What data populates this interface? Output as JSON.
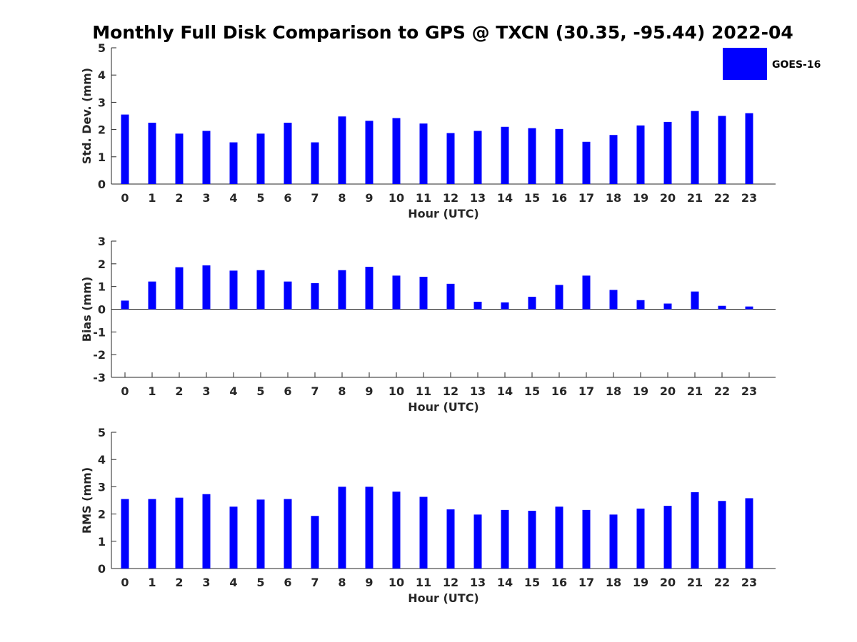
{
  "title": "Monthly Full Disk Comparison to GPS @ TXCN (30.35, -95.44) 2022-04",
  "legend": {
    "label": "GOES-16",
    "color": "#0000ff"
  },
  "chart_data": [
    {
      "type": "bar",
      "title": "Monthly Full Disk Comparison to GPS @ TXCN (30.35, -95.44) 2022-04",
      "xlabel": "Hour (UTC)",
      "ylabel": "Std. Dev. (mm)",
      "ylim": [
        0,
        5
      ],
      "yticks": [
        0,
        1,
        2,
        3,
        4,
        5
      ],
      "categories": [
        "0",
        "1",
        "2",
        "3",
        "4",
        "5",
        "6",
        "7",
        "8",
        "9",
        "10",
        "11",
        "12",
        "13",
        "14",
        "15",
        "16",
        "17",
        "18",
        "19",
        "20",
        "21",
        "22",
        "23"
      ],
      "series": [
        {
          "name": "GOES-16",
          "color": "#0000ff",
          "values": [
            2.55,
            2.25,
            1.85,
            1.95,
            1.53,
            1.85,
            2.25,
            1.53,
            2.48,
            2.32,
            2.42,
            2.22,
            1.87,
            1.95,
            2.1,
            2.05,
            2.02,
            1.55,
            1.8,
            2.15,
            2.28,
            2.68,
            2.5,
            2.6
          ]
        }
      ],
      "legend": "top-right"
    },
    {
      "type": "bar",
      "xlabel": "Hour (UTC)",
      "ylabel": "Bias (mm)",
      "ylim": [
        -3,
        3
      ],
      "yticks": [
        -3,
        -2,
        -1,
        0,
        1,
        2,
        3
      ],
      "categories": [
        "0",
        "1",
        "2",
        "3",
        "4",
        "5",
        "6",
        "7",
        "8",
        "9",
        "10",
        "11",
        "12",
        "13",
        "14",
        "15",
        "16",
        "17",
        "18",
        "19",
        "20",
        "21",
        "22",
        "23"
      ],
      "series": [
        {
          "name": "GOES-16",
          "color": "#0000ff",
          "values": [
            0.38,
            1.22,
            1.85,
            1.93,
            1.7,
            1.72,
            1.22,
            1.15,
            1.72,
            1.87,
            1.48,
            1.43,
            1.12,
            0.33,
            0.3,
            0.55,
            1.07,
            1.48,
            0.85,
            0.4,
            0.25,
            0.78,
            0.15,
            0.12
          ]
        }
      ]
    },
    {
      "type": "bar",
      "xlabel": "Hour (UTC)",
      "ylabel": "RMS (mm)",
      "ylim": [
        0,
        5
      ],
      "yticks": [
        0,
        1,
        2,
        3,
        4,
        5
      ],
      "categories": [
        "0",
        "1",
        "2",
        "3",
        "4",
        "5",
        "6",
        "7",
        "8",
        "9",
        "10",
        "11",
        "12",
        "13",
        "14",
        "15",
        "16",
        "17",
        "18",
        "19",
        "20",
        "21",
        "22",
        "23"
      ],
      "series": [
        {
          "name": "GOES-16",
          "color": "#0000ff",
          "values": [
            2.55,
            2.55,
            2.6,
            2.73,
            2.27,
            2.53,
            2.55,
            1.93,
            3.0,
            3.0,
            2.82,
            2.63,
            2.17,
            1.98,
            2.15,
            2.12,
            2.27,
            2.15,
            1.98,
            2.2,
            2.3,
            2.8,
            2.48,
            2.58
          ]
        }
      ]
    }
  ]
}
